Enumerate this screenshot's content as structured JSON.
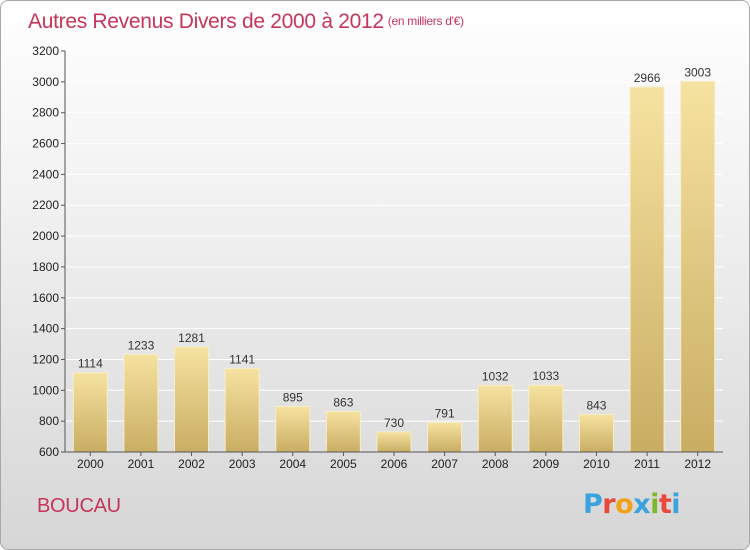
{
  "title": "Autres Revenus Divers de 2000 à 2012",
  "title_unit": "(en milliers d'€)",
  "place": "BOUCAU",
  "logo": {
    "letters": [
      "P",
      "r",
      "o",
      "x",
      "i",
      "t",
      "i"
    ],
    "colors": [
      "#3aa2dc",
      "#e8483c",
      "#f2a21b",
      "#3aa2dc",
      "#7cb82f",
      "#e8483c",
      "#3aa2dc"
    ]
  },
  "colors": {
    "title": "#c7355a",
    "bar_light": "#f6e2a0",
    "bar_dark": "#c9ad63",
    "axis": "#555555",
    "grid": "#ffffff"
  },
  "chart_data": {
    "type": "bar",
    "title": "Autres Revenus Divers de 2000 à 2012",
    "xlabel": "",
    "ylabel": "",
    "categories": [
      "2000",
      "2001",
      "2002",
      "2003",
      "2004",
      "2005",
      "2006",
      "2007",
      "2008",
      "2009",
      "2010",
      "2011",
      "2012"
    ],
    "values": [
      1114,
      1233,
      1281,
      1141,
      895,
      863,
      730,
      791,
      1032,
      1033,
      843,
      2966,
      3003
    ],
    "ylim": [
      600,
      3200
    ],
    "yticks": [
      600,
      800,
      1000,
      1200,
      1400,
      1600,
      1800,
      2000,
      2200,
      2400,
      2600,
      2800,
      3000,
      3200
    ],
    "grid": true,
    "data_labels": true
  }
}
